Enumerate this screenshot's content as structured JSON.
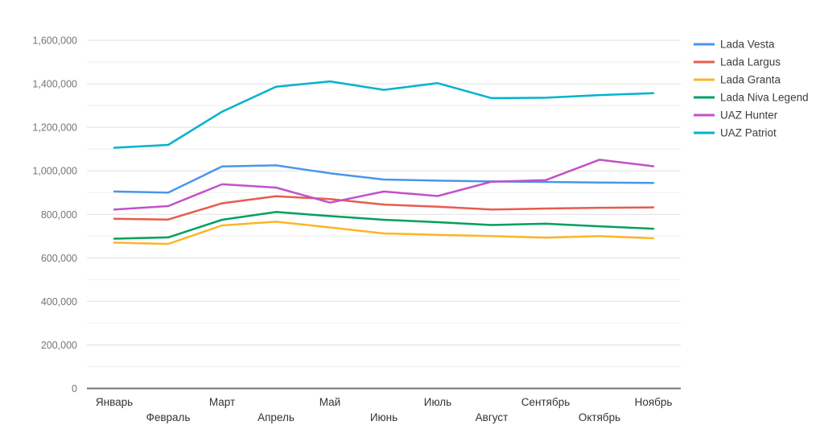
{
  "chart_data": {
    "type": "line",
    "title": "",
    "categories": [
      "Январь",
      "Февраль",
      "Март",
      "Апрель",
      "Май",
      "Июнь",
      "Июль",
      "Август",
      "Сентябрь",
      "Октябрь",
      "Ноябрь"
    ],
    "series": [
      {
        "name": "Lada Vesta",
        "color": "#4a96ea",
        "values": [
          905000,
          900000,
          1020000,
          1025000,
          989000,
          960000,
          955000,
          951000,
          949000,
          946000,
          944000
        ]
      },
      {
        "name": "Lada Largus",
        "color": "#e85c4d",
        "values": [
          780000,
          776000,
          851000,
          883000,
          870000,
          845000,
          835000,
          822000,
          827000,
          830000,
          832000
        ]
      },
      {
        "name": "Lada Granta",
        "color": "#fcb525",
        "values": [
          670000,
          664000,
          749000,
          766000,
          740000,
          712000,
          706000,
          700000,
          693000,
          700000,
          690000
        ]
      },
      {
        "name": "Lada Niva Legend",
        "color": "#00a05e",
        "values": [
          688000,
          694000,
          775000,
          811000,
          792000,
          775000,
          764000,
          751000,
          757000,
          745000,
          734000
        ]
      },
      {
        "name": "UAZ Hunter",
        "color": "#c351c9",
        "values": [
          822000,
          838000,
          938000,
          923000,
          854000,
          905000,
          884000,
          950000,
          957000,
          1051000,
          1021000
        ]
      },
      {
        "name": "UAZ Patriot",
        "color": "#00b3cc",
        "values": [
          1106000,
          1119000,
          1272000,
          1386000,
          1411000,
          1372000,
          1403000,
          1334000,
          1336000,
          1348000,
          1357000
        ]
      }
    ],
    "xlabel": "",
    "ylabel": "",
    "ylim": [
      0,
      1600000
    ],
    "y_major_step": 200000,
    "y_minor_step": 100000,
    "y_tick_labels": [
      "0",
      "200,000",
      "400,000",
      "600,000",
      "800,000",
      "1,000,000",
      "1,200,000",
      "1,400,000",
      "1,600,000"
    ],
    "grid": "horizontal-only",
    "legend_position": "right",
    "x_label_rows": "alternating"
  },
  "colors": {
    "axis_line": "#757575",
    "grid_major": "#e0e0e0",
    "grid_minor": "#efefef",
    "y_label_text": "#757575",
    "x_label_text": "#333333",
    "legend_text": "#3c3c3c",
    "background": "#ffffff"
  }
}
